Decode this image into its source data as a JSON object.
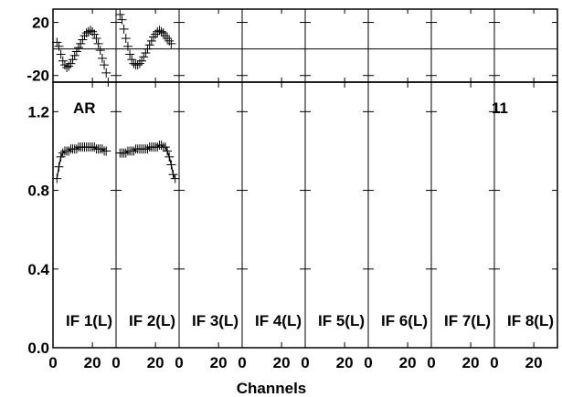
{
  "chart_data": {
    "type": "scatter",
    "title": "",
    "xlabel": "Channels",
    "source_label": "AR",
    "baseline_label": "11",
    "phase_panel": {
      "ylim": [
        -25,
        30
      ],
      "yticks": [
        -20,
        20
      ],
      "ytick_labels": [
        "-20",
        "20"
      ],
      "reference_line": 0
    },
    "amp_panel": {
      "ylim": [
        0,
        1.35
      ],
      "yticks": [
        0.0,
        0.4,
        0.8,
        1.2
      ],
      "ytick_labels": [
        "0.0",
        "0.4",
        "0.8",
        "1.2"
      ]
    },
    "xlim": [
      0,
      32
    ],
    "xticks": [
      0,
      20
    ],
    "xtick_labels": [
      "0",
      "20"
    ],
    "if_labels": [
      "IF 1(L)",
      "IF 2(L)",
      "IF 3(L)",
      "IF 4(L)",
      "IF 5(L)",
      "IF 6(L)",
      "IF 7(L)",
      "IF 8(L)"
    ],
    "series": [
      {
        "if": "IF 1(L)",
        "x": [
          2,
          3,
          4,
          5,
          6,
          7,
          8,
          9,
          10,
          11,
          12,
          13,
          14,
          15,
          16,
          17,
          18,
          19,
          20,
          21,
          22,
          23,
          24,
          25,
          26,
          27,
          28,
          29,
          30,
          31
        ],
        "phase": [
          5,
          2,
          -4,
          -9,
          -12,
          -14,
          -13,
          -11,
          -8,
          -5,
          -2,
          1,
          4,
          7,
          10,
          12,
          13,
          14,
          13,
          11,
          8,
          4,
          -1,
          -7,
          -12,
          -18,
          -25,
          null,
          null,
          null
        ],
        "amplitude": [
          0.86,
          0.92,
          0.97,
          0.99,
          1.0,
          1.0,
          1.0,
          1.01,
          1.01,
          1.01,
          1.01,
          1.02,
          1.02,
          1.02,
          1.02,
          1.02,
          1.02,
          1.02,
          1.02,
          1.02,
          1.01,
          1.01,
          1.01,
          1.01,
          1.0,
          1.0,
          null,
          null,
          null,
          null
        ]
      },
      {
        "if": "IF 2(L)",
        "x": [
          2,
          3,
          4,
          5,
          6,
          7,
          8,
          9,
          10,
          11,
          12,
          13,
          14,
          15,
          16,
          17,
          18,
          19,
          20,
          21,
          22,
          23,
          24,
          25,
          26,
          27,
          28,
          29,
          30,
          31
        ],
        "phase": [
          26,
          22,
          15,
          8,
          2,
          -4,
          -8,
          -11,
          -12,
          -12,
          -11,
          -9,
          -6,
          -3,
          0,
          3,
          6,
          9,
          11,
          13,
          14,
          13,
          12,
          10,
          8,
          6,
          4,
          null,
          null,
          null
        ],
        "amplitude": [
          0.99,
          0.99,
          0.99,
          0.99,
          1.0,
          1.0,
          1.0,
          1.0,
          1.01,
          1.01,
          1.01,
          1.01,
          1.01,
          1.01,
          1.01,
          1.02,
          1.02,
          1.02,
          1.02,
          1.02,
          1.03,
          1.03,
          1.02,
          1.02,
          1.0,
          0.97,
          0.93,
          0.88,
          0.86,
          null
        ]
      },
      {
        "if": "IF 3(L)",
        "x": [],
        "phase": [],
        "amplitude": []
      },
      {
        "if": "IF 4(L)",
        "x": [],
        "phase": [],
        "amplitude": []
      },
      {
        "if": "IF 5(L)",
        "x": [],
        "phase": [],
        "amplitude": []
      },
      {
        "if": "IF 6(L)",
        "x": [],
        "phase": [],
        "amplitude": []
      },
      {
        "if": "IF 7(L)",
        "x": [],
        "phase": [],
        "amplitude": []
      },
      {
        "if": "IF 8(L)",
        "x": [],
        "phase": [],
        "amplitude": []
      }
    ]
  }
}
